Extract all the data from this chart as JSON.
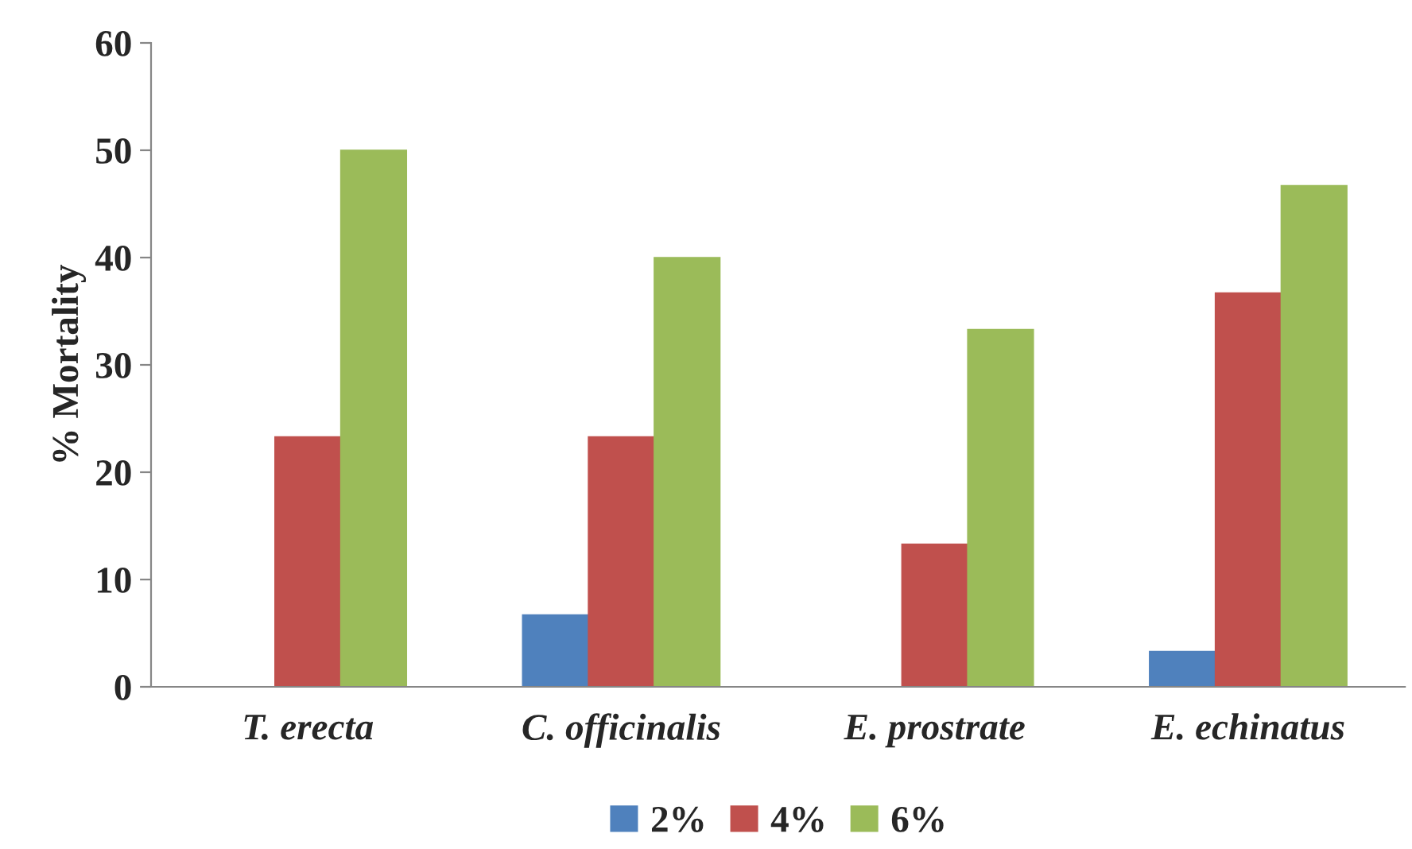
{
  "chart_data": {
    "type": "bar",
    "ylabel": "% Mortality",
    "categories": [
      "T. erecta",
      "C. officinalis",
      "E. prostrate",
      "E. echinatus"
    ],
    "series": [
      {
        "name": "2%",
        "color": "#4f81bd",
        "values": [
          0,
          6.7,
          0,
          3.3
        ]
      },
      {
        "name": "4%",
        "color": "#c0504d",
        "values": [
          23.3,
          23.3,
          13.3,
          36.7
        ]
      },
      {
        "name": "6%",
        "color": "#9bbb59",
        "values": [
          50,
          40,
          33.3,
          46.7
        ]
      }
    ],
    "ylim": [
      0,
      60
    ],
    "yticks": [
      0,
      10,
      20,
      30,
      40,
      50,
      60
    ],
    "grid": false,
    "legend": "bottom"
  }
}
